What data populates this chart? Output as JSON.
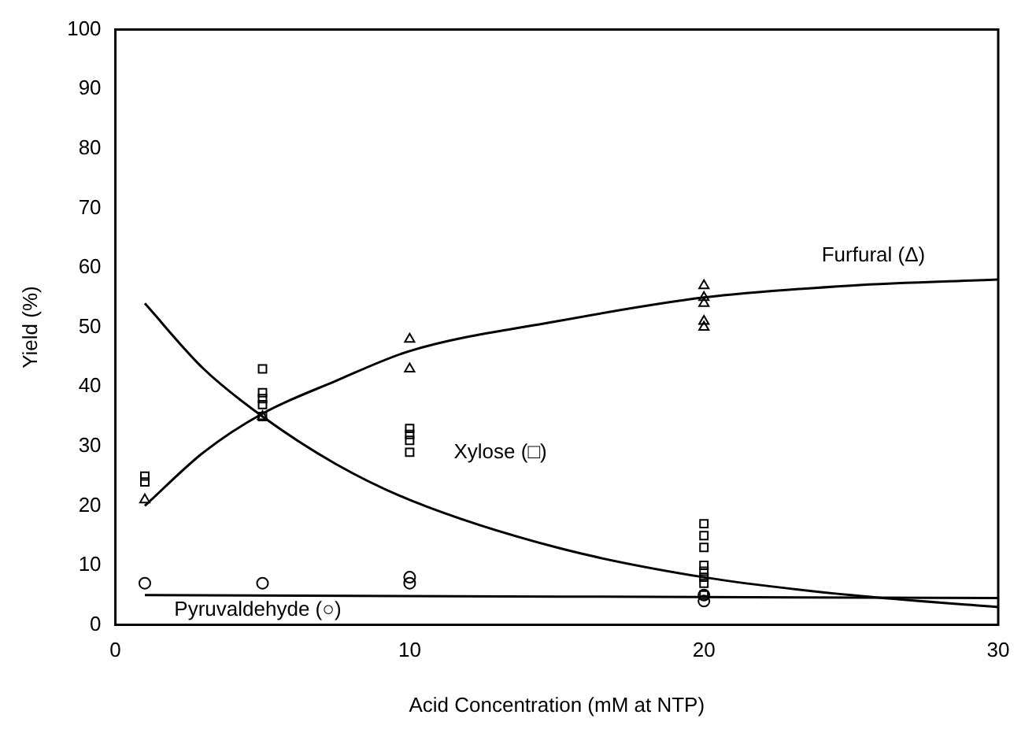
{
  "chart_data": {
    "type": "scatter",
    "xlabel": "Acid Concentration (mM at NTP)",
    "ylabel": "Yield (%)",
    "xlim": [
      0,
      30
    ],
    "xticks": [
      0,
      10,
      20,
      30
    ],
    "ylim": [
      0,
      100
    ],
    "yticks": [
      0,
      10,
      20,
      30,
      40,
      50,
      60,
      70,
      80,
      90,
      100
    ],
    "grid": false,
    "legend": false,
    "series": [
      {
        "type": "scatter",
        "marker": "triangle",
        "color": "#000000",
        "x": [
          1,
          5,
          10,
          10,
          20,
          20,
          20,
          20,
          20
        ],
        "values": [
          21,
          35,
          48,
          43,
          57,
          55,
          54,
          51,
          50
        ]
      },
      {
        "type": "scatter",
        "marker": "square",
        "color": "#000000",
        "x": [
          1,
          1,
          5,
          5,
          5,
          5,
          5,
          10,
          10,
          10,
          10,
          20,
          20,
          20,
          20,
          20,
          20,
          20,
          20
        ],
        "values": [
          25,
          24,
          43,
          39,
          38,
          37,
          35,
          33,
          32,
          31,
          29,
          17,
          15,
          13,
          10,
          9,
          8,
          7,
          5
        ]
      },
      {
        "type": "scatter",
        "marker": "circle",
        "color": "#000000",
        "x": [
          1,
          5,
          10,
          10,
          20,
          20
        ],
        "values": [
          7,
          7,
          8,
          7,
          5,
          4
        ]
      },
      {
        "type": "line",
        "name": "Furfural (Δ)",
        "color": "#000000",
        "x": [
          1,
          3,
          5,
          7.5,
          10,
          15,
          20,
          25,
          30
        ],
        "values": [
          20,
          29,
          35.5,
          41,
          46,
          51,
          55,
          57,
          58
        ]
      },
      {
        "type": "line",
        "name": "Xylose (□)",
        "color": "#000000",
        "x": [
          1,
          3,
          5,
          7.5,
          10,
          15,
          20,
          25,
          30
        ],
        "values": [
          54,
          43,
          35,
          27,
          21,
          13,
          8,
          5,
          3
        ]
      },
      {
        "type": "line",
        "name": "Pyruvaldehyde (○)",
        "color": "#000000",
        "x": [
          1,
          30
        ],
        "values": [
          5,
          4.5
        ]
      }
    ]
  }
}
